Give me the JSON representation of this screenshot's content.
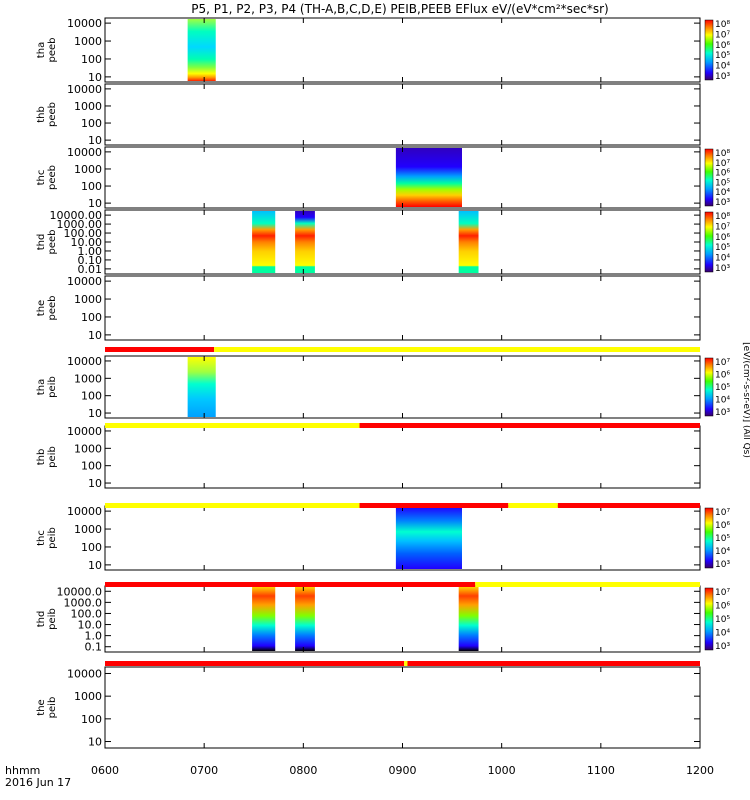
{
  "title": "P5, P1, P2, P3, P4 (TH-A,B,C,D,E) PEIB,PEEB EFlux eV/(eV*cm²*sec*sr)",
  "footer": {
    "label_hhmm": "hhmm",
    "label_date": "2016 Jun 17"
  },
  "colorbar_unit": "[eV/(cm²-s-sr-eV)] (All Qs)",
  "chart_data": {
    "type": "heatmap",
    "x_axis": {
      "range": [
        "0600",
        "1200"
      ],
      "ticks": [
        "0600",
        "0700",
        "0800",
        "0900",
        "1000",
        "1100",
        "1200"
      ]
    },
    "panels": [
      {
        "label1": "tha",
        "label2": "peeb",
        "yticks": [
          "10",
          "100",
          "1000",
          "10000"
        ],
        "cbar": [
          "10³",
          "10⁴",
          "10⁵",
          "10⁶",
          "10⁷",
          "10⁸"
        ],
        "blocks": [
          {
            "start": "0650",
            "end": "0707",
            "style": "cyan-top"
          }
        ]
      },
      {
        "label1": "thb",
        "label2": "peeb",
        "yticks": [
          "10",
          "100",
          "1000",
          "10000"
        ],
        "cbar": [],
        "blocks": []
      },
      {
        "label1": "thc",
        "label2": "peeb",
        "yticks": [
          "10",
          "100",
          "1000",
          "10000"
        ],
        "cbar": [
          "10³",
          "10⁴",
          "10⁵",
          "10⁶",
          "10⁷",
          "10⁸"
        ],
        "blocks": [
          {
            "start": "0856",
            "end": "0936",
            "style": "blue-top"
          }
        ]
      },
      {
        "label1": "thd",
        "label2": "peeb",
        "yticks": [
          "0.01",
          "0.10",
          "1.00",
          "10.00",
          "100.00",
          "1000.00",
          "10000.00"
        ],
        "cbar": [
          "10³",
          "10⁴",
          "10⁵",
          "10⁶",
          "10⁷",
          "10⁸"
        ],
        "blocks": [
          {
            "start": "0729",
            "end": "0743",
            "style": "banded"
          },
          {
            "start": "0755",
            "end": "0807",
            "style": "banded-blue"
          },
          {
            "start": "0934",
            "end": "0946",
            "style": "banded"
          }
        ]
      },
      {
        "label1": "the",
        "label2": "peeb",
        "yticks": [
          "10",
          "100",
          "1000",
          "10000"
        ],
        "cbar": [],
        "blocks": []
      },
      {
        "label1": "tha",
        "label2": "peib",
        "yticks": [
          "10",
          "100",
          "1000",
          "10000"
        ],
        "cbar": [
          "10³",
          "10⁴",
          "10⁵",
          "10⁶",
          "10⁷"
        ],
        "blocks": [
          {
            "start": "0650",
            "end": "0707",
            "style": "ion-cyan"
          }
        ]
      },
      {
        "label1": "thb",
        "label2": "peib",
        "yticks": [
          "10",
          "100",
          "1000",
          "10000"
        ],
        "cbar": [],
        "blocks": []
      },
      {
        "label1": "thc",
        "label2": "peib",
        "yticks": [
          "10",
          "100",
          "1000",
          "10000"
        ],
        "cbar": [
          "10³",
          "10⁴",
          "10⁵",
          "10⁶",
          "10⁷"
        ],
        "blocks": [
          {
            "start": "0856",
            "end": "0936",
            "style": "ion-blue"
          }
        ]
      },
      {
        "label1": "thd",
        "label2": "peib",
        "yticks": [
          "0.1",
          "1.0",
          "10.0",
          "100.0",
          "1000.0",
          "10000.0"
        ],
        "cbar": [
          "10³",
          "10⁴",
          "10⁵",
          "10⁶",
          "10⁷"
        ],
        "blocks": [
          {
            "start": "0729",
            "end": "0743",
            "style": "ion-warm"
          },
          {
            "start": "0755",
            "end": "0807",
            "style": "ion-warm"
          },
          {
            "start": "0934",
            "end": "0946",
            "style": "ion-warm"
          }
        ]
      },
      {
        "label1": "the",
        "label2": "peib",
        "yticks": [
          "10",
          "100",
          "1000",
          "10000"
        ],
        "cbar": [],
        "blocks": []
      }
    ],
    "status_bars": [
      {
        "after_panel": 4,
        "segments": [
          {
            "start": "0600",
            "end": "0706",
            "color": "#ff0000"
          },
          {
            "start": "0706",
            "end": "1200",
            "color": "#ffff00"
          }
        ]
      },
      {
        "after_panel": 5,
        "segments": [
          {
            "start": "0600",
            "end": "0834",
            "color": "#ffff00"
          },
          {
            "start": "0834",
            "end": "1200",
            "color": "#ff0000"
          }
        ]
      },
      {
        "after_panel": 6,
        "segments": [
          {
            "start": "0600",
            "end": "0834",
            "color": "#ffff00"
          },
          {
            "start": "0834",
            "end": "1004",
            "color": "#ff0000"
          },
          {
            "start": "1004",
            "end": "1034",
            "color": "#ffff00"
          },
          {
            "start": "1034",
            "end": "1200",
            "color": "#ff0000"
          }
        ]
      },
      {
        "after_panel": 7,
        "segments": [
          {
            "start": "0600",
            "end": "0944",
            "color": "#ff0000"
          },
          {
            "start": "0944",
            "end": "1200",
            "color": "#ffff00"
          }
        ]
      },
      {
        "after_panel": 8,
        "segments": [
          {
            "start": "0600",
            "end": "0901",
            "color": "#ff0000"
          },
          {
            "start": "0901",
            "end": "0903",
            "color": "#ffff00"
          },
          {
            "start": "0903",
            "end": "1200",
            "color": "#ff0000"
          }
        ]
      }
    ]
  }
}
